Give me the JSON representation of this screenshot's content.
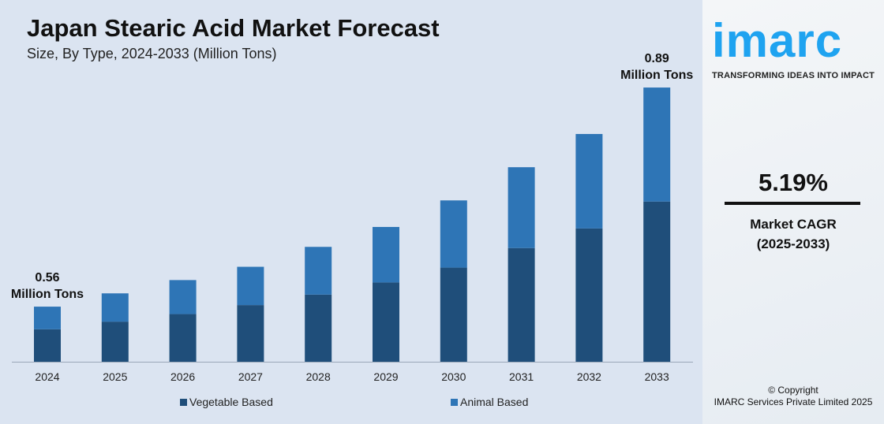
{
  "chart_data": {
    "type": "bar",
    "stacked": true,
    "title": "Japan Stearic Acid Market Forecast",
    "subtitle": "Size, By Type, 2024-2033 (Million Tons)",
    "categories": [
      "2024",
      "2025",
      "2026",
      "2027",
      "2028",
      "2029",
      "2030",
      "2031",
      "2032",
      "2033"
    ],
    "series": [
      {
        "name": "Vegetable Based",
        "color": "#1f4e7a",
        "values": [
          0.33,
          0.34,
          0.35,
          0.37,
          0.38,
          0.4,
          0.42,
          0.45,
          0.48,
          0.52
        ]
      },
      {
        "name": "Animal Based",
        "color": "#2e75b6",
        "values": [
          0.23,
          0.24,
          0.25,
          0.25,
          0.27,
          0.28,
          0.3,
          0.32,
          0.34,
          0.37
        ]
      }
    ],
    "annotations": [
      {
        "year": "2024",
        "line1": "0.56",
        "line2": "Million Tons"
      },
      {
        "year": "2033",
        "line1": "0.89",
        "line2": "Million Tons"
      }
    ],
    "legend": "bottom",
    "grid": false
  },
  "brand": {
    "logo": "imarc",
    "tagline": "TRANSFORMING IDEAS INTO IMPACT",
    "logo_color": "#1fa3f0"
  },
  "cagr": {
    "value": "5.19%",
    "label": "Market CAGR",
    "period": "(2025-2033)"
  },
  "copyright": {
    "line1": "© Copyright",
    "line2": "IMARC Services Private Limited 2025"
  }
}
